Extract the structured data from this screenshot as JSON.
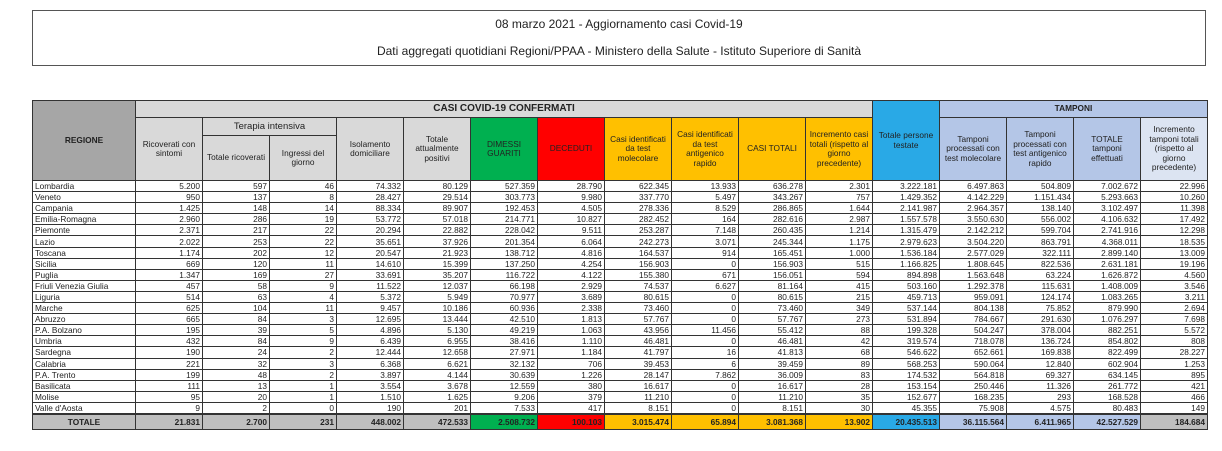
{
  "title": {
    "line1": "08 marzo 2021 - Aggiornamento casi Covid-19",
    "line2": "Dati aggregati quotidiani Regioni/PPAA - Ministero della Salute - Istituto Superiore di Sanità"
  },
  "headers": {
    "regione": "REGIONE",
    "casi_group": "CASI COVID-19 CONFERMATI",
    "tamponi_group": "TAMPONI",
    "terapia_group": "Terapia intensiva",
    "cols": [
      "Ricoverati con sintomi",
      "Totale ricoverati",
      "Ingressi del giorno",
      "Isolamento domiciliare",
      "Totale attualmente positivi",
      "DIMESSI GUARITI",
      "DECEDUTI",
      "Casi identificati da test molecolare",
      "Casi identificati da test antigenico rapido",
      "CASI TOTALI",
      "Incremento casi totali (rispetto al giorno precedente)",
      "Totale persone testate",
      "Tamponi processati con test molecolare",
      "Tamponi processati con test antigenico rapido",
      "TOTALE tamponi effettuati",
      "Incremento tamponi totali (rispetto al giorno precedente)"
    ]
  },
  "colors": {
    "dimessi": "#00b050",
    "deceduti": "#ff0000",
    "casi": "#ffc000",
    "persone": "#29a9e6",
    "tamponi": "#b4c6e7"
  },
  "rows": [
    [
      "Lombardia",
      "5.200",
      "597",
      "46",
      "74.332",
      "80.129",
      "527.359",
      "28.790",
      "622.345",
      "13.933",
      "636.278",
      "2.301",
      "3.222.181",
      "6.497.863",
      "504.809",
      "7.002.672",
      "22.996"
    ],
    [
      "Veneto",
      "950",
      "137",
      "8",
      "28.427",
      "29.514",
      "303.773",
      "9.980",
      "337.770",
      "5.497",
      "343.267",
      "757",
      "1.429.352",
      "4.142.229",
      "1.151.434",
      "5.293.663",
      "10.260"
    ],
    [
      "Campania",
      "1.425",
      "148",
      "14",
      "88.334",
      "89.907",
      "192.453",
      "4.505",
      "278.336",
      "8.529",
      "286.865",
      "1.644",
      "2.141.987",
      "2.964.357",
      "138.140",
      "3.102.497",
      "11.398"
    ],
    [
      "Emilia-Romagna",
      "2.960",
      "286",
      "19",
      "53.772",
      "57.018",
      "214.771",
      "10.827",
      "282.452",
      "164",
      "282.616",
      "2.987",
      "1.557.578",
      "3.550.630",
      "556.002",
      "4.106.632",
      "17.492"
    ],
    [
      "Piemonte",
      "2.371",
      "217",
      "22",
      "20.294",
      "22.882",
      "228.042",
      "9.511",
      "253.287",
      "7.148",
      "260.435",
      "1.214",
      "1.315.479",
      "2.142.212",
      "599.704",
      "2.741.916",
      "12.298"
    ],
    [
      "Lazio",
      "2.022",
      "253",
      "22",
      "35.651",
      "37.926",
      "201.354",
      "6.064",
      "242.273",
      "3.071",
      "245.344",
      "1.175",
      "2.979.623",
      "3.504.220",
      "863.791",
      "4.368.011",
      "18.535"
    ],
    [
      "Toscana",
      "1.174",
      "202",
      "12",
      "20.547",
      "21.923",
      "138.712",
      "4.816",
      "164.537",
      "914",
      "165.451",
      "1.000",
      "1.536.184",
      "2.577.029",
      "322.111",
      "2.899.140",
      "13.009"
    ],
    [
      "Sicilia",
      "669",
      "120",
      "11",
      "14.610",
      "15.399",
      "137.250",
      "4.254",
      "156.903",
      "0",
      "156.903",
      "515",
      "1.166.825",
      "1.808.645",
      "822.536",
      "2.631.181",
      "19.196"
    ],
    [
      "Puglia",
      "1.347",
      "169",
      "27",
      "33.691",
      "35.207",
      "116.722",
      "4.122",
      "155.380",
      "671",
      "156.051",
      "594",
      "894.898",
      "1.563.648",
      "63.224",
      "1.626.872",
      "4.560"
    ],
    [
      "Friuli Venezia Giulia",
      "457",
      "58",
      "9",
      "11.522",
      "12.037",
      "66.198",
      "2.929",
      "74.537",
      "6.627",
      "81.164",
      "415",
      "503.160",
      "1.292.378",
      "115.631",
      "1.408.009",
      "3.546"
    ],
    [
      "Liguria",
      "514",
      "63",
      "4",
      "5.372",
      "5.949",
      "70.977",
      "3.689",
      "80.615",
      "0",
      "80.615",
      "215",
      "459.713",
      "959.091",
      "124.174",
      "1.083.265",
      "3.211"
    ],
    [
      "Marche",
      "625",
      "104",
      "11",
      "9.457",
      "10.186",
      "60.936",
      "2.338",
      "73.460",
      "0",
      "73.460",
      "349",
      "537.144",
      "804.138",
      "75.852",
      "879.990",
      "2.694"
    ],
    [
      "Abruzzo",
      "665",
      "84",
      "3",
      "12.695",
      "13.444",
      "42.510",
      "1.813",
      "57.767",
      "0",
      "57.767",
      "273",
      "531.894",
      "784.667",
      "291.630",
      "1.076.297",
      "7.698"
    ],
    [
      "P.A. Bolzano",
      "195",
      "39",
      "5",
      "4.896",
      "5.130",
      "49.219",
      "1.063",
      "43.956",
      "11.456",
      "55.412",
      "88",
      "199.328",
      "504.247",
      "378.004",
      "882.251",
      "5.572"
    ],
    [
      "Umbria",
      "432",
      "84",
      "9",
      "6.439",
      "6.955",
      "38.416",
      "1.110",
      "46.481",
      "0",
      "46.481",
      "42",
      "319.574",
      "718.078",
      "136.724",
      "854.802",
      "808"
    ],
    [
      "Sardegna",
      "190",
      "24",
      "2",
      "12.444",
      "12.658",
      "27.971",
      "1.184",
      "41.797",
      "16",
      "41.813",
      "68",
      "546.622",
      "652.661",
      "169.838",
      "822.499",
      "28.227"
    ],
    [
      "Calabria",
      "221",
      "32",
      "3",
      "6.368",
      "6.621",
      "32.132",
      "706",
      "39.453",
      "6",
      "39.459",
      "89",
      "568.253",
      "590.064",
      "12.840",
      "602.904",
      "1.253"
    ],
    [
      "P.A. Trento",
      "199",
      "48",
      "2",
      "3.897",
      "4.144",
      "30.639",
      "1.226",
      "28.147",
      "7.862",
      "36.009",
      "83",
      "174.532",
      "564.818",
      "69.327",
      "634.145",
      "895"
    ],
    [
      "Basilicata",
      "111",
      "13",
      "1",
      "3.554",
      "3.678",
      "12.559",
      "380",
      "16.617",
      "0",
      "16.617",
      "28",
      "153.154",
      "250.446",
      "11.326",
      "261.772",
      "421"
    ],
    [
      "Molise",
      "95",
      "20",
      "1",
      "1.510",
      "1.625",
      "9.206",
      "379",
      "11.210",
      "0",
      "11.210",
      "35",
      "152.677",
      "168.235",
      "293",
      "168.528",
      "466"
    ],
    [
      "Valle d'Aosta",
      "9",
      "2",
      "0",
      "190",
      "201",
      "7.533",
      "417",
      "8.151",
      "0",
      "8.151",
      "30",
      "45.355",
      "75.908",
      "4.575",
      "80.483",
      "149"
    ]
  ],
  "totale": [
    "TOTALE",
    "21.831",
    "2.700",
    "231",
    "448.002",
    "472.533",
    "2.508.732",
    "100.103",
    "3.015.474",
    "65.894",
    "3.081.368",
    "13.902",
    "20.435.513",
    "36.115.564",
    "6.411.965",
    "42.527.529",
    "184.684"
  ]
}
